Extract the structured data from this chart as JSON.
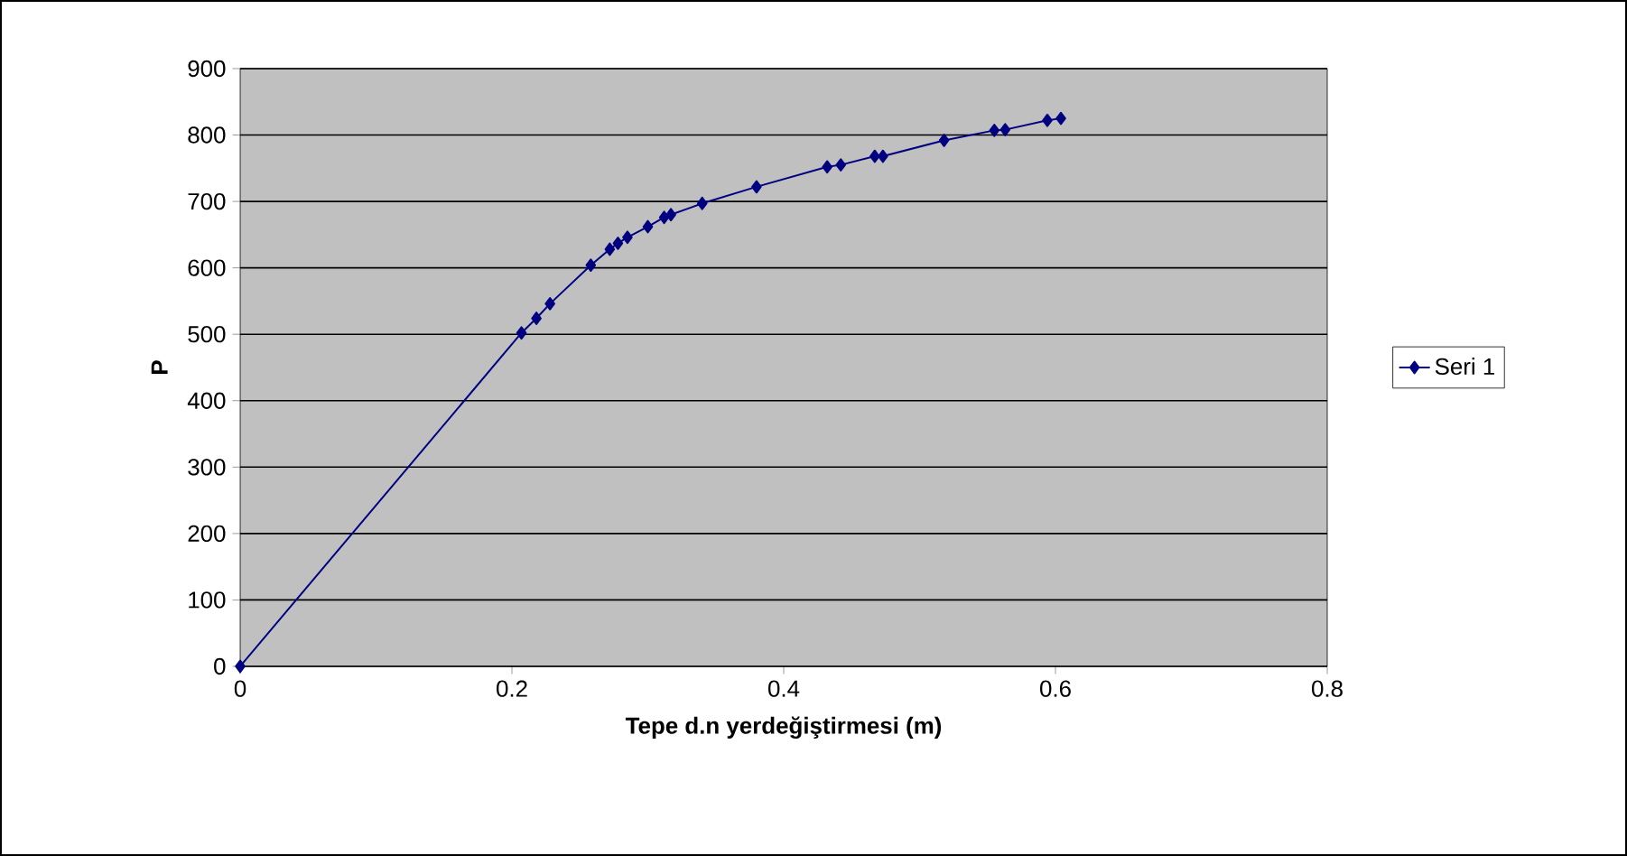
{
  "chart_data": {
    "type": "line",
    "xlabel": "Tepe d.n yerdeğiştirmesi (m)",
    "ylabel": "P",
    "series": [
      {
        "name": "Seri 1",
        "color": "#000080",
        "x": [
          0,
          0.207,
          0.218,
          0.228,
          0.258,
          0.272,
          0.278,
          0.285,
          0.3,
          0.312,
          0.317,
          0.34,
          0.38,
          0.432,
          0.442,
          0.467,
          0.473,
          0.518,
          0.555,
          0.563,
          0.594,
          0.604
        ],
        "values": [
          0,
          502,
          524,
          546,
          604,
          628,
          637,
          646,
          662,
          676,
          680,
          697,
          722,
          752,
          755,
          768,
          768,
          792,
          807,
          808,
          822,
          825
        ]
      }
    ],
    "xlim": [
      0,
      0.8
    ],
    "xticks": [
      0,
      0.2,
      0.4,
      0.6,
      0.8
    ],
    "ylim": [
      0,
      900
    ],
    "yticks": [
      0,
      100,
      200,
      300,
      400,
      500,
      600,
      700,
      800,
      900
    ],
    "grid": "y",
    "legend": "right",
    "marker": "diamond",
    "line_style": "solid"
  }
}
